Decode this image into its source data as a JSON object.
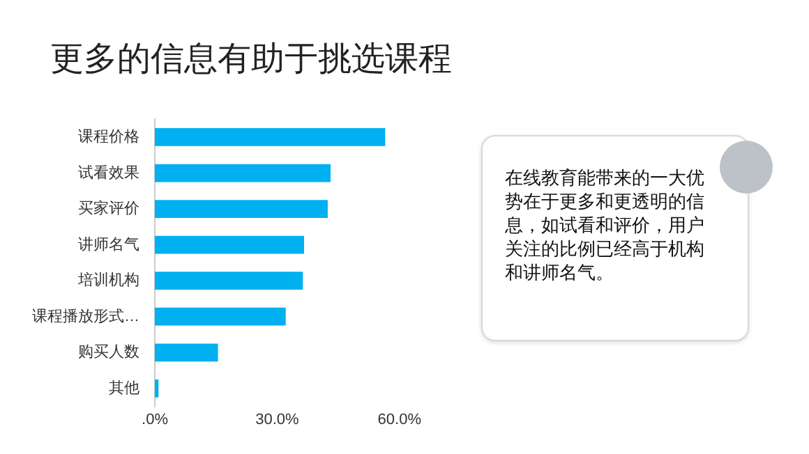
{
  "chart_data": {
    "type": "bar",
    "orientation": "horizontal",
    "title": "更多的信息有助于挑选课程",
    "categories": [
      "课程价格",
      "试看效果",
      "买家评价",
      "讲师名气",
      "培训机构",
      "课程播放形式…",
      "购买人数",
      "其他"
    ],
    "values": [
      56.5,
      43.1,
      42.4,
      36.6,
      36.3,
      32.1,
      15.5,
      0.9
    ],
    "color": "#00b0f0",
    "xlim": [
      0,
      60
    ],
    "xticks": [
      {
        "value": 0,
        "label": ".0%"
      },
      {
        "value": 30,
        "label": "30.0%"
      },
      {
        "value": 60,
        "label": "60.0%"
      }
    ],
    "grid": false,
    "legend": false,
    "annotations": [
      "在线教育能带来的一大优势在于更多和更透明的信息，如试看和评价，用户关注的比例已经高于机构和讲师名气。"
    ]
  }
}
